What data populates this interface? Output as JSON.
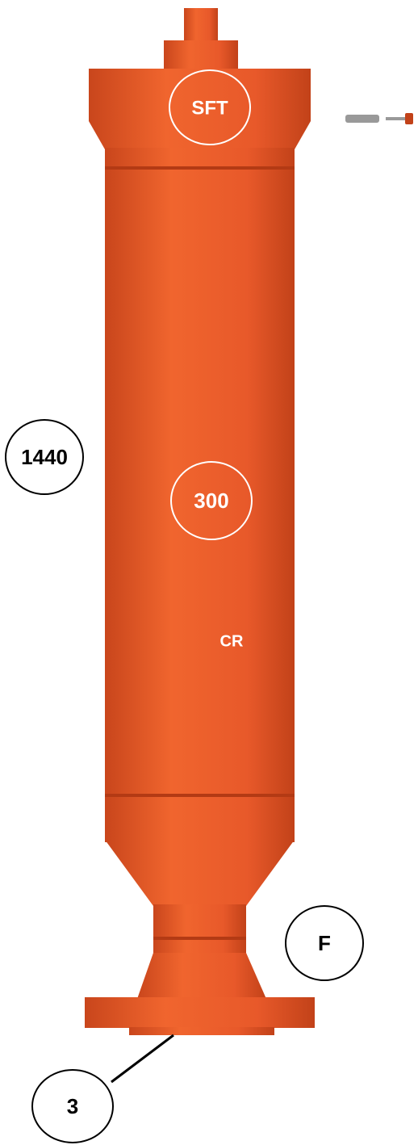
{
  "labels": {
    "top": "SFT",
    "body": "300",
    "lower_body": "CR",
    "height": "1440",
    "neck": "F",
    "bottom": "3"
  }
}
